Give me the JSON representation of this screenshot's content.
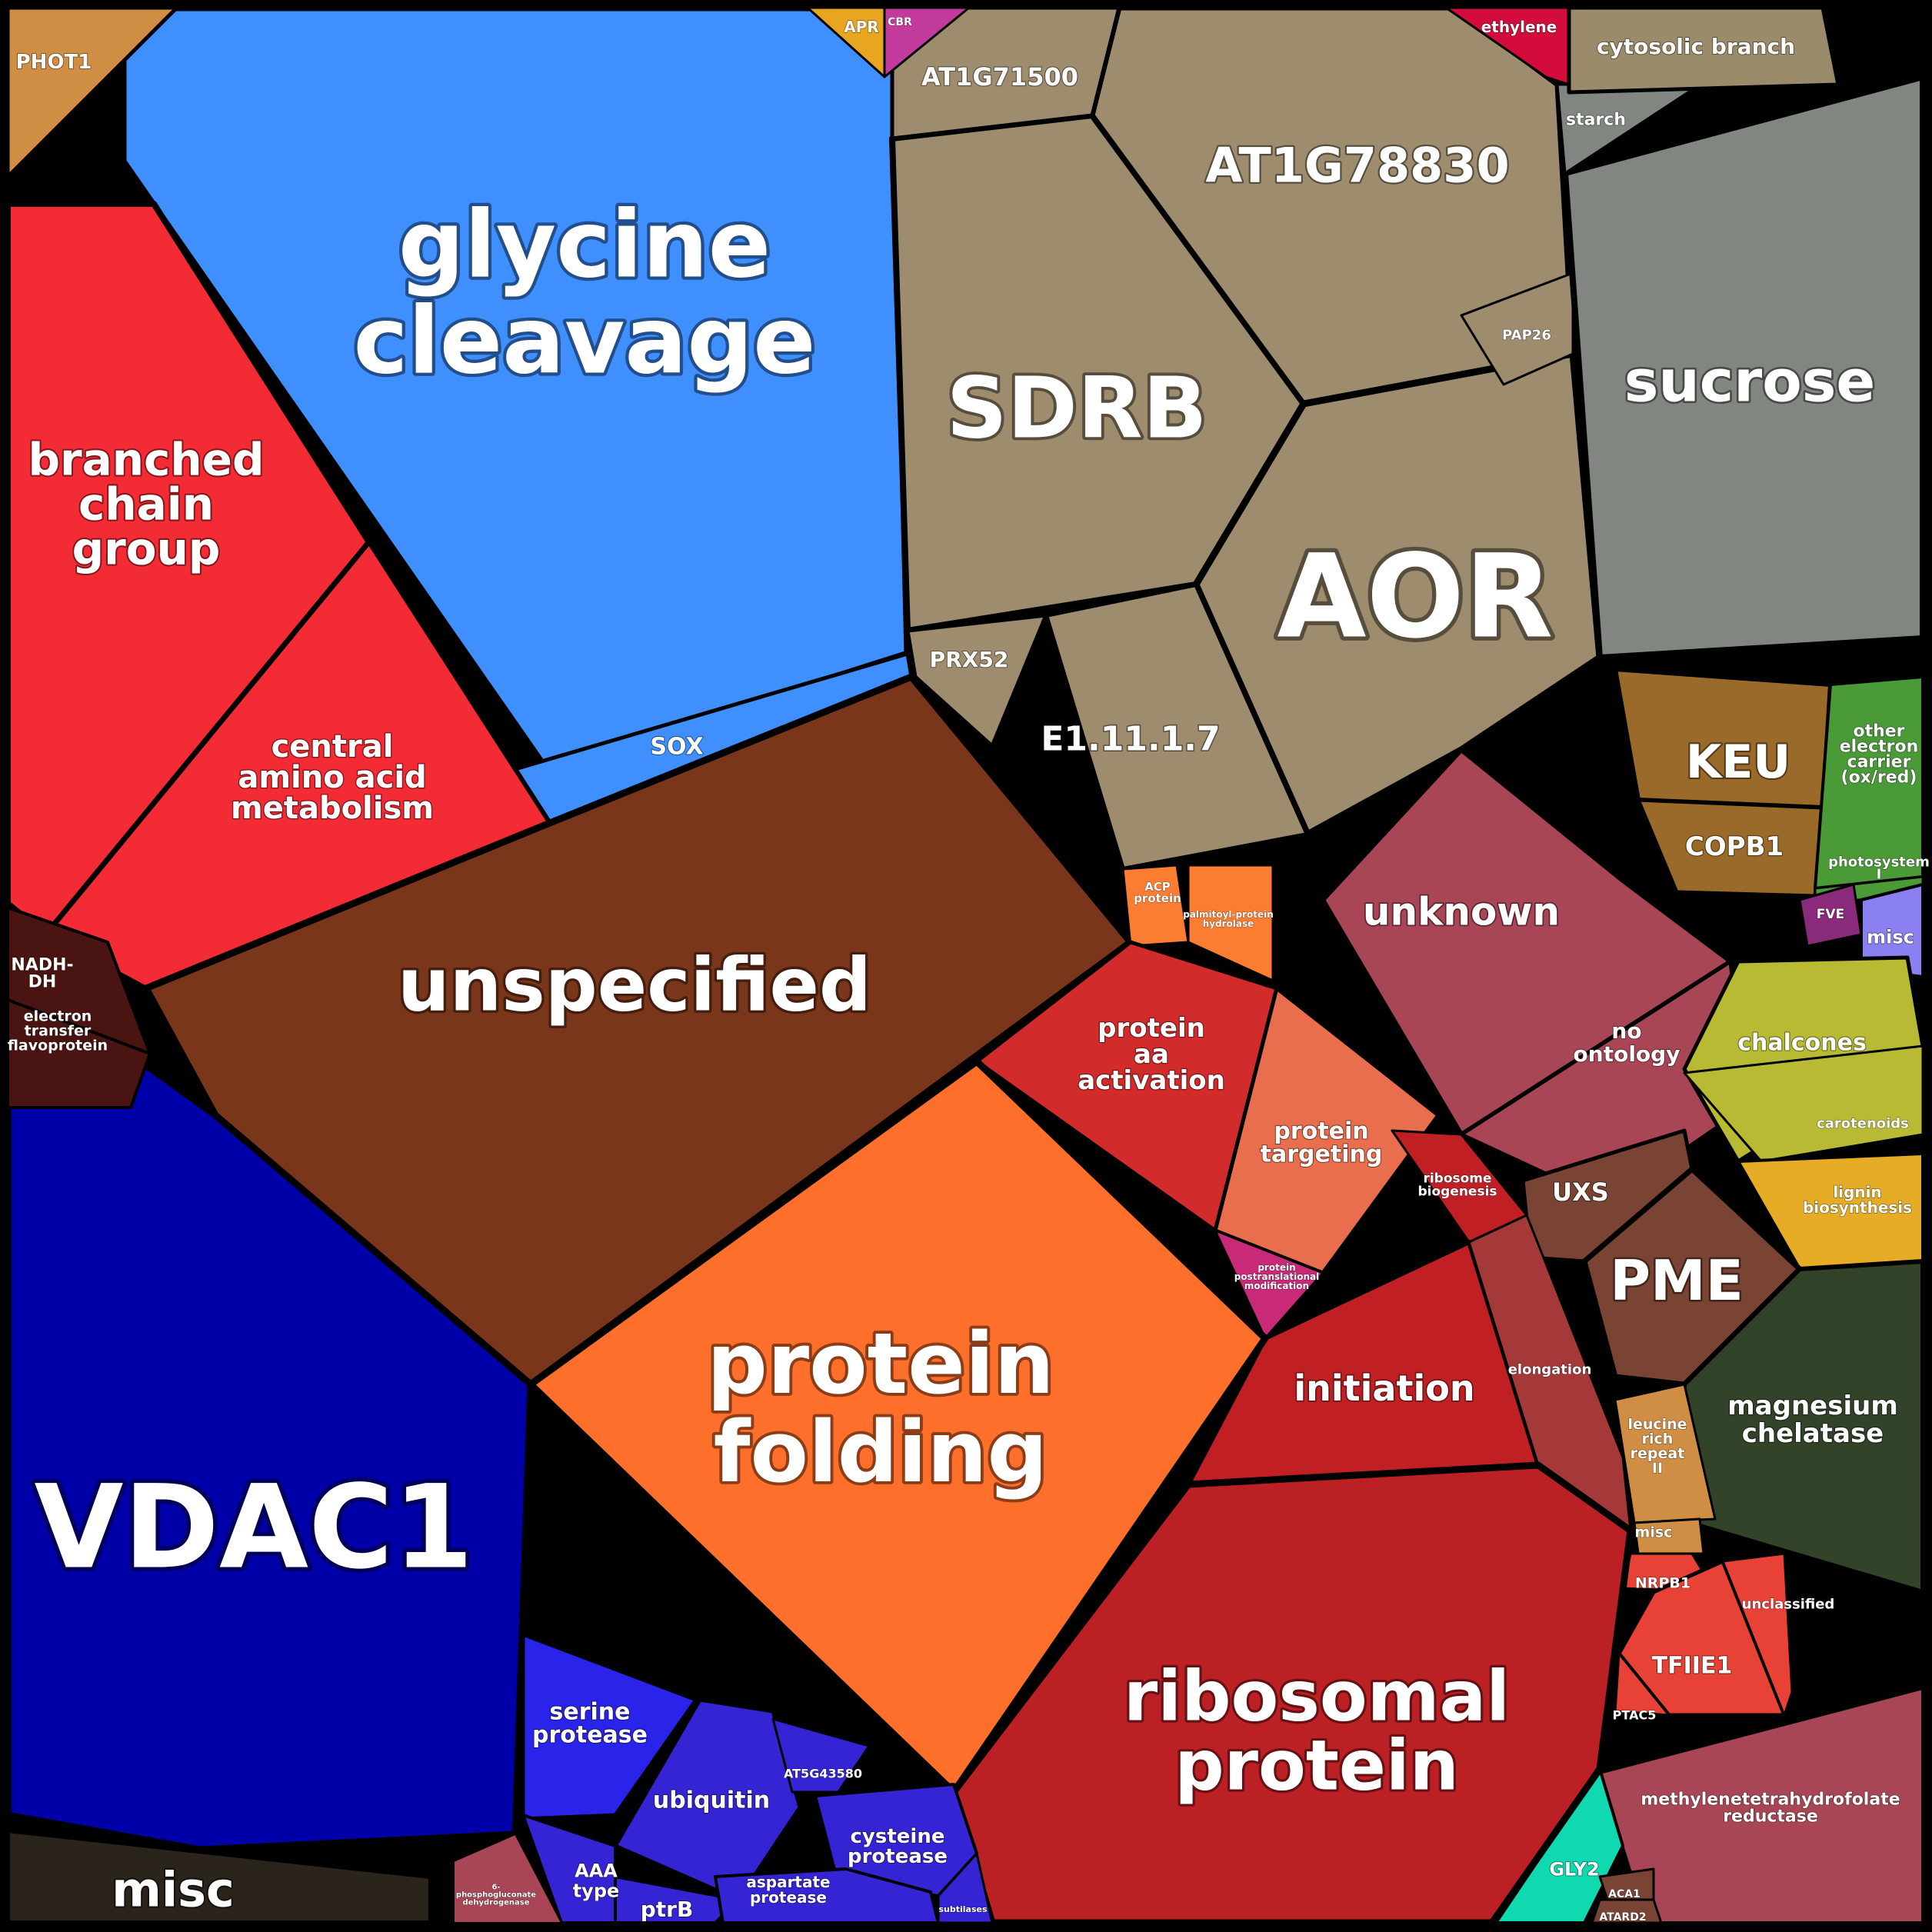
{
  "chart_data": {
    "type": "voronoi-treemap",
    "cells": [
      {
        "label": "glycine cleavage",
        "color": "#3f8ffe"
      },
      {
        "label": "SOX",
        "color": "#3f8ffe"
      },
      {
        "label": "branched chain group",
        "color": "#f32b35"
      },
      {
        "label": "central amino acid metabolism",
        "color": "#f32b35"
      },
      {
        "label": "PHOT1",
        "color": "#d08e45"
      },
      {
        "label": "unspecified",
        "color": "#7a361a"
      },
      {
        "label": "SDRB",
        "color": "#9e8c6e"
      },
      {
        "label": "AT1G78830",
        "color": "#9e8c6e"
      },
      {
        "label": "AT1G71500",
        "color": "#9e8c6e"
      },
      {
        "label": "AOR",
        "color": "#9e8c6e"
      },
      {
        "label": "E1.11.1.7",
        "color": "#9e8c6e"
      },
      {
        "label": "PRX52",
        "color": "#9e8c6e"
      },
      {
        "label": "PAP26",
        "color": "#9e8c6e"
      },
      {
        "label": "APR",
        "color": "#e8a520"
      },
      {
        "label": "CBR",
        "color": "#c23a9c"
      },
      {
        "label": "ethylene",
        "color": "#d40c3c"
      },
      {
        "label": "sucrose",
        "color": "#818780"
      },
      {
        "label": "starch",
        "color": "#818780"
      },
      {
        "label": "cytosolic branch",
        "color": "#9a8c6a"
      },
      {
        "label": "KEU",
        "color": "#9a6a2a"
      },
      {
        "label": "COPB1",
        "color": "#9a6a2a"
      },
      {
        "label": "other electron carrier (ox/red)",
        "color": "#4a9a38"
      },
      {
        "label": "photosystem I",
        "color": "#4a9a38"
      },
      {
        "label": "FVE",
        "color": "#8a2a7a"
      },
      {
        "label": "misc",
        "color": "#8a80f0"
      },
      {
        "label": "unknown",
        "color": "#a84656"
      },
      {
        "label": "no ontology",
        "color": "#a84656"
      },
      {
        "label": "chalcones",
        "color": "#b8ba34"
      },
      {
        "label": "carotenoids",
        "color": "#b8ba34"
      },
      {
        "label": "lignin biosynthesis",
        "color": "#e6ac26"
      },
      {
        "label": "UXS",
        "color": "#7a4434"
      },
      {
        "label": "PME",
        "color": "#7a4434"
      },
      {
        "label": "magnesium chelatase",
        "color": "#33432a"
      },
      {
        "label": "leucine rich repeat II",
        "color": "#d08e45"
      },
      {
        "label": "misc",
        "color": "#d08e45"
      },
      {
        "label": "NRPB1",
        "color": "#e74235"
      },
      {
        "label": "TFIIE1",
        "color": "#e74235"
      },
      {
        "label": "unclassified",
        "color": "#e74235"
      },
      {
        "label": "PTAC5",
        "color": "#e74235"
      },
      {
        "label": "methylenetetrahydrofolate reductase",
        "color": "#a84656"
      },
      {
        "label": "GLY2",
        "color": "#10d8b0"
      },
      {
        "label": "ACA1",
        "color": "#7a4434"
      },
      {
        "label": "ATARD2",
        "color": "#7a4434"
      },
      {
        "label": "ACP protein",
        "color": "#fa7d32"
      },
      {
        "label": "palmitoyl-protein hydrolase",
        "color": "#fa7d32"
      },
      {
        "label": "protein aa activation",
        "color": "#d22b2b"
      },
      {
        "label": "protein targeting",
        "color": "#e86e4e"
      },
      {
        "label": "protein postranslational modification",
        "color": "#c82a78"
      },
      {
        "label": "ribosome biogenesis",
        "color": "#c01f24"
      },
      {
        "label": "initiation",
        "color": "#c01f24"
      },
      {
        "label": "elongation",
        "color": "#a53939"
      },
      {
        "label": "ribosomal protein",
        "color": "#bb2024"
      },
      {
        "label": "protein folding",
        "color": "#fe6f2c"
      },
      {
        "label": "VDAC1",
        "color": "#0000a8"
      },
      {
        "label": "misc",
        "color": "#2b241c"
      },
      {
        "label": "NADH-DH",
        "color": "#4a1412"
      },
      {
        "label": "electron transfer flavoprotein",
        "color": "#4a1412"
      },
      {
        "label": "serine protease",
        "color": "#2a24ea"
      },
      {
        "label": "ubiquitin",
        "color": "#3424d4"
      },
      {
        "label": "AT5G43580",
        "color": "#3424d4"
      },
      {
        "label": "cysteine protease",
        "color": "#3424d4"
      },
      {
        "label": "AAA type",
        "color": "#3424d4"
      },
      {
        "label": "ptrB",
        "color": "#3424d4"
      },
      {
        "label": "aspartate protease",
        "color": "#3424d4"
      },
      {
        "label": "subtilases",
        "color": "#3424d4"
      },
      {
        "label": "6-phosphogluconate dehydrogenase",
        "color": "#a84656"
      }
    ]
  }
}
